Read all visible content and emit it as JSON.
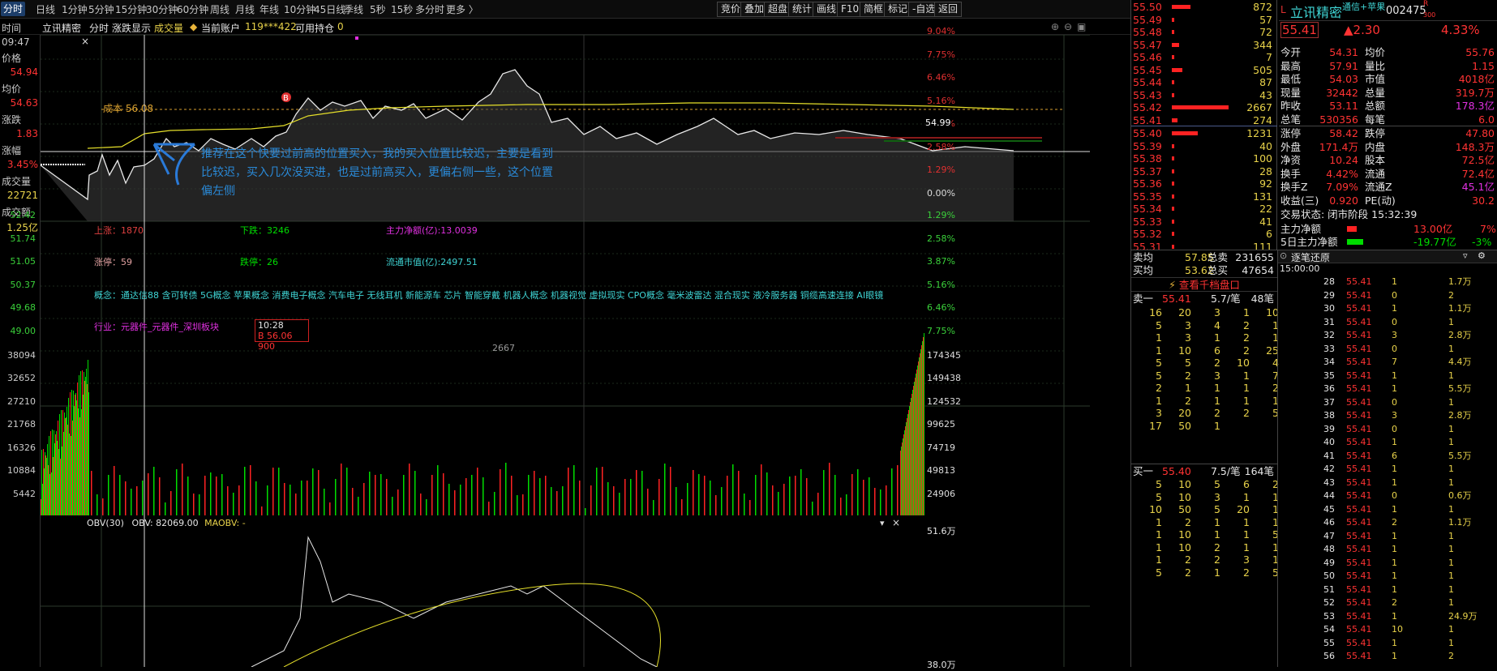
{
  "topbar": {
    "tabs": [
      "分时",
      "日线",
      "1分钟",
      "5分钟",
      "15分钟",
      "30分钟",
      "60分钟",
      "周线",
      "月线",
      "年线",
      "10分钟",
      "45日线",
      "季线",
      "5秒",
      "15秒",
      "多分时",
      "更多 〉"
    ],
    "right_buttons": [
      "竞价",
      "叠加",
      "超盘",
      "统计",
      "画线",
      "F10",
      "简框",
      "标记",
      "-自选",
      "返回"
    ]
  },
  "subbar": {
    "left_title": "时间",
    "stock": "立讯精密",
    "mode": "分时",
    "zd": "涨跌显示",
    "vol": "成交量",
    "account": "当前账户",
    "account_no": "119***422",
    "hold": "可用持仓",
    "hold_val": "0"
  },
  "leftpanel": {
    "time": "09:47",
    "price_label": "价格",
    "price": "54.94",
    "avg_label": "均价",
    "avg": "54.63",
    "chg_label": "涨跌",
    "chg": "1.83",
    "pct_label": "涨幅",
    "pct": "3.45%",
    "vol_label": "成交量",
    "vol": "22721",
    "amt_label": "成交额",
    "amt": "1.25亿"
  },
  "price_axis_left": [
    "52.42",
    "51.74",
    "51.05",
    "50.37",
    "49.68",
    "49.00"
  ],
  "price_axis_right_up": [
    "9.04%",
    "7.75%",
    "6.46%",
    "5.16%",
    "3.87%",
    "2.58%",
    "1.29%",
    "0.00%"
  ],
  "price_axis_right_down": [
    "1.29%",
    "2.58%",
    "3.87%",
    "5.16%",
    "6.46%",
    "7.75%"
  ],
  "last_price_tag": "54.99",
  "cost_label": "成本 56.08",
  "annotation": "推荐在这个快要过前高的位置买入，我的买入位置比较迟，主要是看到比较迟，买入几次没买进，也是过前高买入，更偏右侧一些，这个位置偏左侧",
  "market": {
    "up_label": "上涨：1870",
    "down_label": "下跌：3246",
    "net_label": "主力净额(亿):13.0039",
    "limit_up": "涨停：59",
    "limit_down": "跌停：26",
    "float_cap": "流通市值(亿):2497.51",
    "concept": "概念：通达信88 含可转债 5G概念 苹果概念 消费电子概念 汽车电子 无线耳机 新能源车 芯片 智能穿戴 机器人概念 机器视觉 虚拟现实 CPO概念 毫米波雷达 混合现实 液冷服务器 铜缆高速连接 AI眼镜",
    "industry": "行业：元器件_元器件_深圳板块"
  },
  "trade_box": {
    "time": "10:28",
    "detail": "B 56.06  900"
  },
  "vol_axis_left": [
    "38094",
    "32652",
    "27210",
    "21768",
    "16326",
    "10884",
    "5442"
  ],
  "vol_axis_right": [
    "174345",
    "149438",
    "124532",
    "99625",
    "74719",
    "49813",
    "24906"
  ],
  "vol_mark": "2667",
  "obv": {
    "label": "OBV(30)",
    "val": "OBV: 82069.00",
    "ma": "MAOBV: -",
    "axis1": "51.6万",
    "axis2": "38.0万"
  },
  "rightpanel": {
    "name": "立讯精密",
    "tag": "通信+苹果",
    "code": "002475",
    "code_suffix": "R",
    "code_sub": "300",
    "price": "55.41",
    "change": "▲2.30",
    "pct": "4.33%",
    "sell_levels": [
      {
        "p": "55.50",
        "v": "872"
      },
      {
        "p": "55.49",
        "v": "57"
      },
      {
        "p": "55.48",
        "v": "72"
      },
      {
        "p": "55.47",
        "v": "344"
      },
      {
        "p": "55.46",
        "v": "7"
      },
      {
        "p": "55.45",
        "v": "505"
      },
      {
        "p": "55.44",
        "v": "87"
      },
      {
        "p": "55.43",
        "v": "43"
      },
      {
        "p": "55.42",
        "v": "2667"
      },
      {
        "p": "55.41",
        "v": "274"
      }
    ],
    "buy_levels": [
      {
        "p": "55.40",
        "v": "1231"
      },
      {
        "p": "55.39",
        "v": "40"
      },
      {
        "p": "55.38",
        "v": "100"
      },
      {
        "p": "55.37",
        "v": "28"
      },
      {
        "p": "55.36",
        "v": "92"
      },
      {
        "p": "55.35",
        "v": "131"
      },
      {
        "p": "55.34",
        "v": "22"
      },
      {
        "p": "55.33",
        "v": "41"
      },
      {
        "p": "55.32",
        "v": "6"
      },
      {
        "p": "55.31",
        "v": "111"
      }
    ],
    "stats": [
      [
        "今开",
        "54.31",
        "均价",
        "55.76"
      ],
      [
        "最高",
        "57.91",
        "量比",
        "1.15"
      ],
      [
        "最低",
        "54.03",
        "市值",
        "4018亿"
      ],
      [
        "现量",
        "32442",
        "总量",
        "319.7万"
      ],
      [
        "昨收",
        "53.11",
        "总额",
        "178.3亿"
      ],
      [
        "总笔",
        "530356",
        "每笔",
        "6.0"
      ]
    ],
    "stats2": [
      [
        "涨停",
        "58.42",
        "跌停",
        "47.80"
      ],
      [
        "外盘",
        "171.4万",
        "内盘",
        "148.3万"
      ],
      [
        "净资",
        "10.24",
        "股本",
        "72.5亿"
      ],
      [
        "换手",
        "4.42%",
        "流通",
        "72.4亿"
      ],
      [
        "换手Z",
        "7.09%",
        "流通Z",
        "45.1亿"
      ],
      [
        "收益(三)",
        "0.920",
        "PE(动)",
        "30.2"
      ]
    ],
    "trade_status": "交易状态: 闭市阶段 15:32:39",
    "main_net_label": "主力净额",
    "main_net": "13.00亿",
    "main_net_pct": "7%",
    "main5_label": "5日主力净额",
    "main5": "-19.77亿",
    "main5_pct": "-3%",
    "sell_avg_label": "卖均",
    "sell_avg": "57.85",
    "total_sell_label": "总卖",
    "total_sell": "231655",
    "buy_avg_label": "买均",
    "buy_avg": "53.62",
    "total_buy_label": "总买",
    "total_buy": "47654",
    "ten_levels": "查看千档盘口",
    "sell1": {
      "label": "卖一",
      "p": "55.41",
      "per": "5.7/笔",
      "n": "48笔"
    },
    "sell1_grid": [
      [
        "16",
        "20",
        "3",
        "1",
        "10"
      ],
      [
        "5",
        "3",
        "4",
        "2",
        "1"
      ],
      [
        "1",
        "3",
        "1",
        "2",
        "1"
      ],
      [
        "1",
        "10",
        "6",
        "2",
        "25"
      ],
      [
        "5",
        "5",
        "2",
        "10",
        "4"
      ],
      [
        "5",
        "2",
        "3",
        "1",
        "7"
      ],
      [
        "2",
        "1",
        "1",
        "1",
        "2"
      ],
      [
        "1",
        "2",
        "1",
        "1",
        "1"
      ],
      [
        "3",
        "20",
        "2",
        "2",
        "5"
      ],
      [
        "17",
        "50",
        "1",
        "",
        ""
      ]
    ],
    "buy1": {
      "label": "买一",
      "p": "55.40",
      "per": "7.5/笔",
      "n": "164笔"
    },
    "buy1_grid": [
      [
        "5",
        "10",
        "5",
        "6",
        "2"
      ],
      [
        "5",
        "10",
        "3",
        "1",
        "1"
      ],
      [
        "10",
        "50",
        "5",
        "20",
        "1"
      ],
      [
        "1",
        "2",
        "1",
        "1",
        "1"
      ],
      [
        "1",
        "10",
        "1",
        "1",
        "5"
      ],
      [
        "1",
        "10",
        "2",
        "1",
        "1"
      ],
      [
        "1",
        "2",
        "2",
        "3",
        "1"
      ],
      [
        "5",
        "2",
        "1",
        "2",
        "5"
      ]
    ],
    "tick_title": "逐笔还原",
    "tick_time": "15:00:00",
    "tick_rows": [
      [
        "28",
        "1",
        "1.7万"
      ],
      [
        "29",
        "0",
        "2"
      ],
      [
        "30",
        "1",
        "1.1万"
      ],
      [
        "31",
        "0",
        "1"
      ],
      [
        "32",
        "3",
        "2.8万"
      ],
      [
        "33",
        "0",
        "1"
      ],
      [
        "34",
        "7",
        "4.4万"
      ],
      [
        "35",
        "1",
        "1"
      ],
      [
        "36",
        "1",
        "5.5万"
      ],
      [
        "37",
        "0",
        "1"
      ],
      [
        "38",
        "3",
        "2.8万"
      ],
      [
        "39",
        "0",
        "1"
      ],
      [
        "40",
        "1",
        "1"
      ],
      [
        "41",
        "6",
        "5.5万"
      ],
      [
        "42",
        "1",
        "1"
      ],
      [
        "43",
        "1",
        "1"
      ],
      [
        "44",
        "0",
        "0.6万"
      ],
      [
        "45",
        "1",
        "1"
      ],
      [
        "46",
        "2",
        "1.1万"
      ],
      [
        "47",
        "1",
        "1"
      ],
      [
        "48",
        "1",
        "1"
      ],
      [
        "49",
        "1",
        "1"
      ],
      [
        "50",
        "1",
        "1"
      ],
      [
        "51",
        "1",
        "1"
      ],
      [
        "52",
        "2",
        "1"
      ],
      [
        "53",
        "1",
        "24.9万"
      ],
      [
        "54",
        "10",
        "1"
      ],
      [
        "55",
        "1",
        "1"
      ],
      [
        "56",
        "1",
        "2"
      ]
    ],
    "tick_price": "55.41"
  }
}
